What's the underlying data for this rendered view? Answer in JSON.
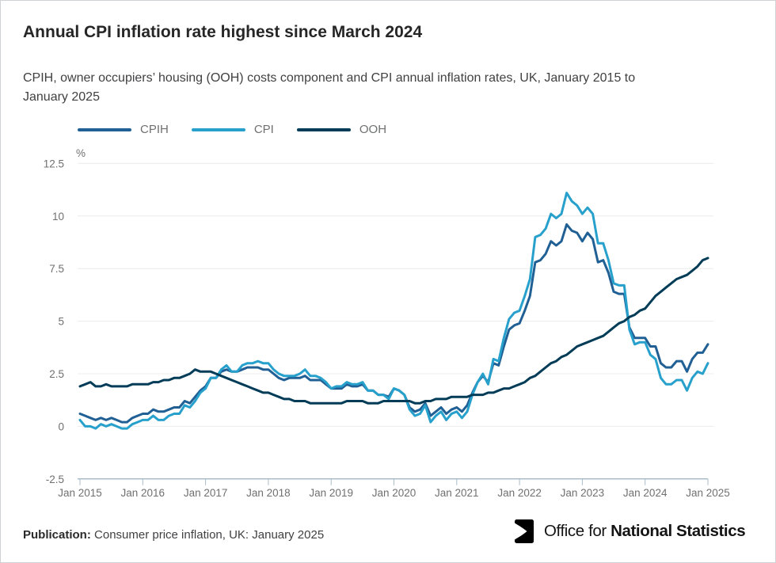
{
  "header": {
    "title": "Annual CPI inflation rate highest since March 2024",
    "subtitle_line1": "CPIH, owner occupiers’ housing (OOH) costs component and CPI annual inflation rates, UK, January 2015 to",
    "subtitle_line2": "January 2025"
  },
  "legend": {
    "items": [
      {
        "label": "CPIH",
        "color": "#206095"
      },
      {
        "label": "CPI",
        "color": "#27A0CC"
      },
      {
        "label": "OOH",
        "color": "#003C57"
      }
    ]
  },
  "chart_data": {
    "type": "line",
    "title": "Annual CPI inflation rate highest since March 2024",
    "unit_label": "%",
    "frequency": "monthly",
    "x_start": "Jan 2015",
    "x_end": "Jan 2025",
    "x_tick_labels": [
      "Jan 2015",
      "Jan 2016",
      "Jan 2017",
      "Jan 2018",
      "Jan 2019",
      "Jan 2020",
      "Jan 2021",
      "Jan 2022",
      "Jan 2023",
      "Jan 2024",
      "Jan 2025"
    ],
    "y_ticks": [
      -2.5,
      0,
      2.5,
      5,
      7.5,
      10,
      12.5
    ],
    "ylim": [
      -2.5,
      12.5
    ],
    "grid": true,
    "legend_position": "top-left",
    "series": [
      {
        "name": "CPIH",
        "color": "#206095",
        "values": [
          0.6,
          0.5,
          0.4,
          0.3,
          0.4,
          0.3,
          0.4,
          0.3,
          0.2,
          0.2,
          0.4,
          0.5,
          0.6,
          0.6,
          0.8,
          0.7,
          0.7,
          0.8,
          0.9,
          0.9,
          1.2,
          1.1,
          1.4,
          1.7,
          1.9,
          2.3,
          2.3,
          2.6,
          2.7,
          2.6,
          2.6,
          2.7,
          2.8,
          2.8,
          2.8,
          2.7,
          2.7,
          2.5,
          2.3,
          2.2,
          2.3,
          2.3,
          2.3,
          2.4,
          2.2,
          2.2,
          2.2,
          2.0,
          1.8,
          1.8,
          1.8,
          2.0,
          1.9,
          1.9,
          2.0,
          1.7,
          1.7,
          1.5,
          1.5,
          1.4,
          1.8,
          1.7,
          1.5,
          0.9,
          0.7,
          0.8,
          1.1,
          0.5,
          0.7,
          0.9,
          0.6,
          0.8,
          0.9,
          0.7,
          1.0,
          1.6,
          2.1,
          2.4,
          2.1,
          3.0,
          2.9,
          3.8,
          4.6,
          4.8,
          4.9,
          5.5,
          6.2,
          7.8,
          7.9,
          8.2,
          8.8,
          8.6,
          8.8,
          9.6,
          9.3,
          9.2,
          8.8,
          9.2,
          8.9,
          7.8,
          7.9,
          7.3,
          6.4,
          6.3,
          6.3,
          4.7,
          4.2,
          4.2,
          4.2,
          3.8,
          3.8,
          3.0,
          2.8,
          2.8,
          3.1,
          3.1,
          2.6,
          3.2,
          3.5,
          3.5,
          3.9
        ]
      },
      {
        "name": "CPI",
        "color": "#27A0CC",
        "values": [
          0.3,
          0.0,
          0.0,
          -0.1,
          0.1,
          0.0,
          0.1,
          0.0,
          -0.1,
          -0.1,
          0.1,
          0.2,
          0.3,
          0.3,
          0.5,
          0.3,
          0.3,
          0.5,
          0.6,
          0.6,
          1.0,
          0.9,
          1.2,
          1.6,
          1.8,
          2.3,
          2.3,
          2.7,
          2.9,
          2.6,
          2.6,
          2.9,
          3.0,
          3.0,
          3.1,
          3.0,
          3.0,
          2.7,
          2.5,
          2.4,
          2.4,
          2.4,
          2.5,
          2.7,
          2.4,
          2.4,
          2.3,
          2.1,
          1.8,
          1.9,
          1.9,
          2.1,
          2.0,
          2.0,
          2.1,
          1.7,
          1.7,
          1.5,
          1.5,
          1.3,
          1.8,
          1.7,
          1.5,
          0.8,
          0.5,
          0.6,
          1.0,
          0.2,
          0.5,
          0.7,
          0.3,
          0.6,
          0.7,
          0.4,
          0.7,
          1.5,
          2.1,
          2.5,
          2.0,
          3.2,
          3.1,
          4.2,
          5.1,
          5.4,
          5.5,
          6.2,
          7.0,
          9.0,
          9.1,
          9.4,
          10.1,
          9.9,
          10.1,
          11.1,
          10.7,
          10.5,
          10.1,
          10.4,
          10.1,
          8.7,
          8.7,
          7.9,
          6.8,
          6.7,
          6.7,
          4.6,
          3.9,
          4.0,
          4.0,
          3.4,
          3.2,
          2.3,
          2.0,
          2.0,
          2.2,
          2.2,
          1.7,
          2.3,
          2.6,
          2.5,
          3.0
        ]
      },
      {
        "name": "OOH",
        "color": "#003C57",
        "values": [
          1.9,
          2.0,
          2.1,
          1.9,
          1.9,
          2.0,
          1.9,
          1.9,
          1.9,
          1.9,
          2.0,
          2.0,
          2.0,
          2.0,
          2.1,
          2.1,
          2.2,
          2.2,
          2.3,
          2.3,
          2.4,
          2.5,
          2.7,
          2.6,
          2.6,
          2.6,
          2.5,
          2.4,
          2.3,
          2.2,
          2.1,
          2.0,
          1.9,
          1.8,
          1.7,
          1.6,
          1.6,
          1.5,
          1.4,
          1.3,
          1.3,
          1.2,
          1.2,
          1.2,
          1.1,
          1.1,
          1.1,
          1.1,
          1.1,
          1.1,
          1.1,
          1.2,
          1.2,
          1.2,
          1.2,
          1.1,
          1.1,
          1.1,
          1.2,
          1.2,
          1.2,
          1.2,
          1.2,
          1.2,
          1.1,
          1.1,
          1.2,
          1.2,
          1.3,
          1.3,
          1.3,
          1.4,
          1.4,
          1.4,
          1.4,
          1.5,
          1.5,
          1.5,
          1.6,
          1.6,
          1.7,
          1.8,
          1.8,
          1.9,
          2.0,
          2.1,
          2.3,
          2.4,
          2.6,
          2.8,
          3.0,
          3.1,
          3.3,
          3.4,
          3.6,
          3.8,
          3.9,
          4.0,
          4.1,
          4.2,
          4.3,
          4.5,
          4.7,
          4.9,
          5.0,
          5.2,
          5.3,
          5.5,
          5.6,
          5.9,
          6.2,
          6.4,
          6.6,
          6.8,
          7.0,
          7.1,
          7.2,
          7.4,
          7.6,
          7.9,
          8.0
        ]
      }
    ]
  },
  "footer": {
    "publication_label": "Publication:",
    "publication_text": "Consumer price inflation, UK: January 2025",
    "logo_text_regular": "Office for ",
    "logo_text_bold": "National Statistics"
  }
}
